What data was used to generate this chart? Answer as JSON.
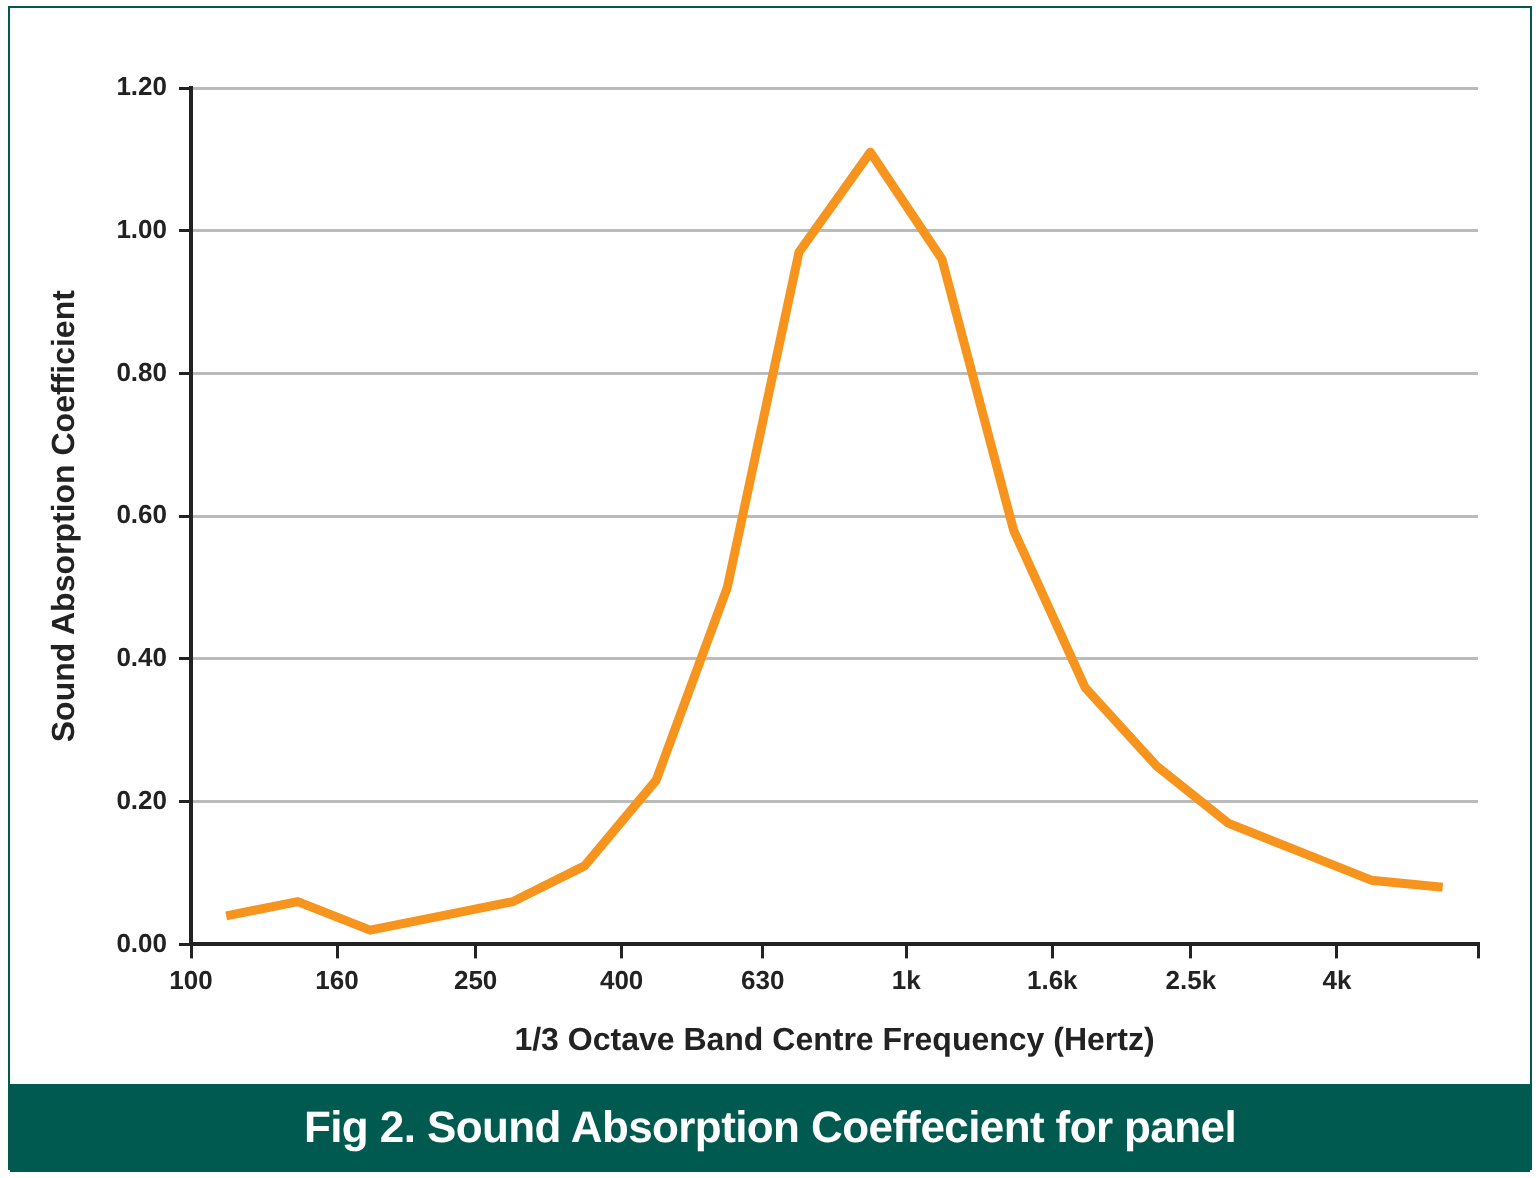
{
  "chart_data": {
    "type": "line",
    "title": "Fig 2. Sound Absorption Coeffecient for panel",
    "xlabel": "1/3 Octave Band Centre Frequency (Hertz)",
    "ylabel": "Sound Absorption Coefficient",
    "log": "x",
    "xlim": [
      100,
      6300
    ],
    "xticks": [
      100,
      160,
      250,
      400,
      630,
      {
        "value": 1000,
        "label": "1k"
      },
      {
        "value": 1600,
        "label": "1.6k"
      },
      {
        "value": 2500,
        "label": "2.5k"
      },
      {
        "value": 4000,
        "label": "4k"
      },
      {
        "value": 6300,
        "label": null
      }
    ],
    "ylim": [
      0,
      1.2
    ],
    "yticks": [
      {
        "value": 0,
        "label": "0.00"
      },
      {
        "value": 0.2,
        "label": "0.20"
      },
      {
        "value": 0.4,
        "label": "0.40"
      },
      {
        "value": 0.6,
        "label": "0.60"
      },
      {
        "value": 0.8,
        "label": "0.80"
      },
      {
        "value": 1,
        "label": "1.00"
      },
      {
        "value": 1.2,
        "label": "1.20"
      }
    ],
    "grid": "y",
    "legend": false,
    "marker": "none",
    "line_style": "solid",
    "x": [
      112,
      141,
      178,
      224,
      282,
      355,
      447,
      562,
      708,
      891,
      1122,
      1413,
      1778,
      2239,
      2818,
      3548,
      4467,
      5623
    ],
    "series": [
      {
        "color": "#f7941d",
        "values": [
          0.04,
          0.06,
          0.02,
          0.04,
          0.06,
          0.11,
          0.23,
          0.5,
          0.97,
          1.11,
          0.96,
          0.58,
          0.36,
          0.25,
          0.17,
          0.13,
          0.09,
          0.08
        ]
      }
    ]
  }
}
